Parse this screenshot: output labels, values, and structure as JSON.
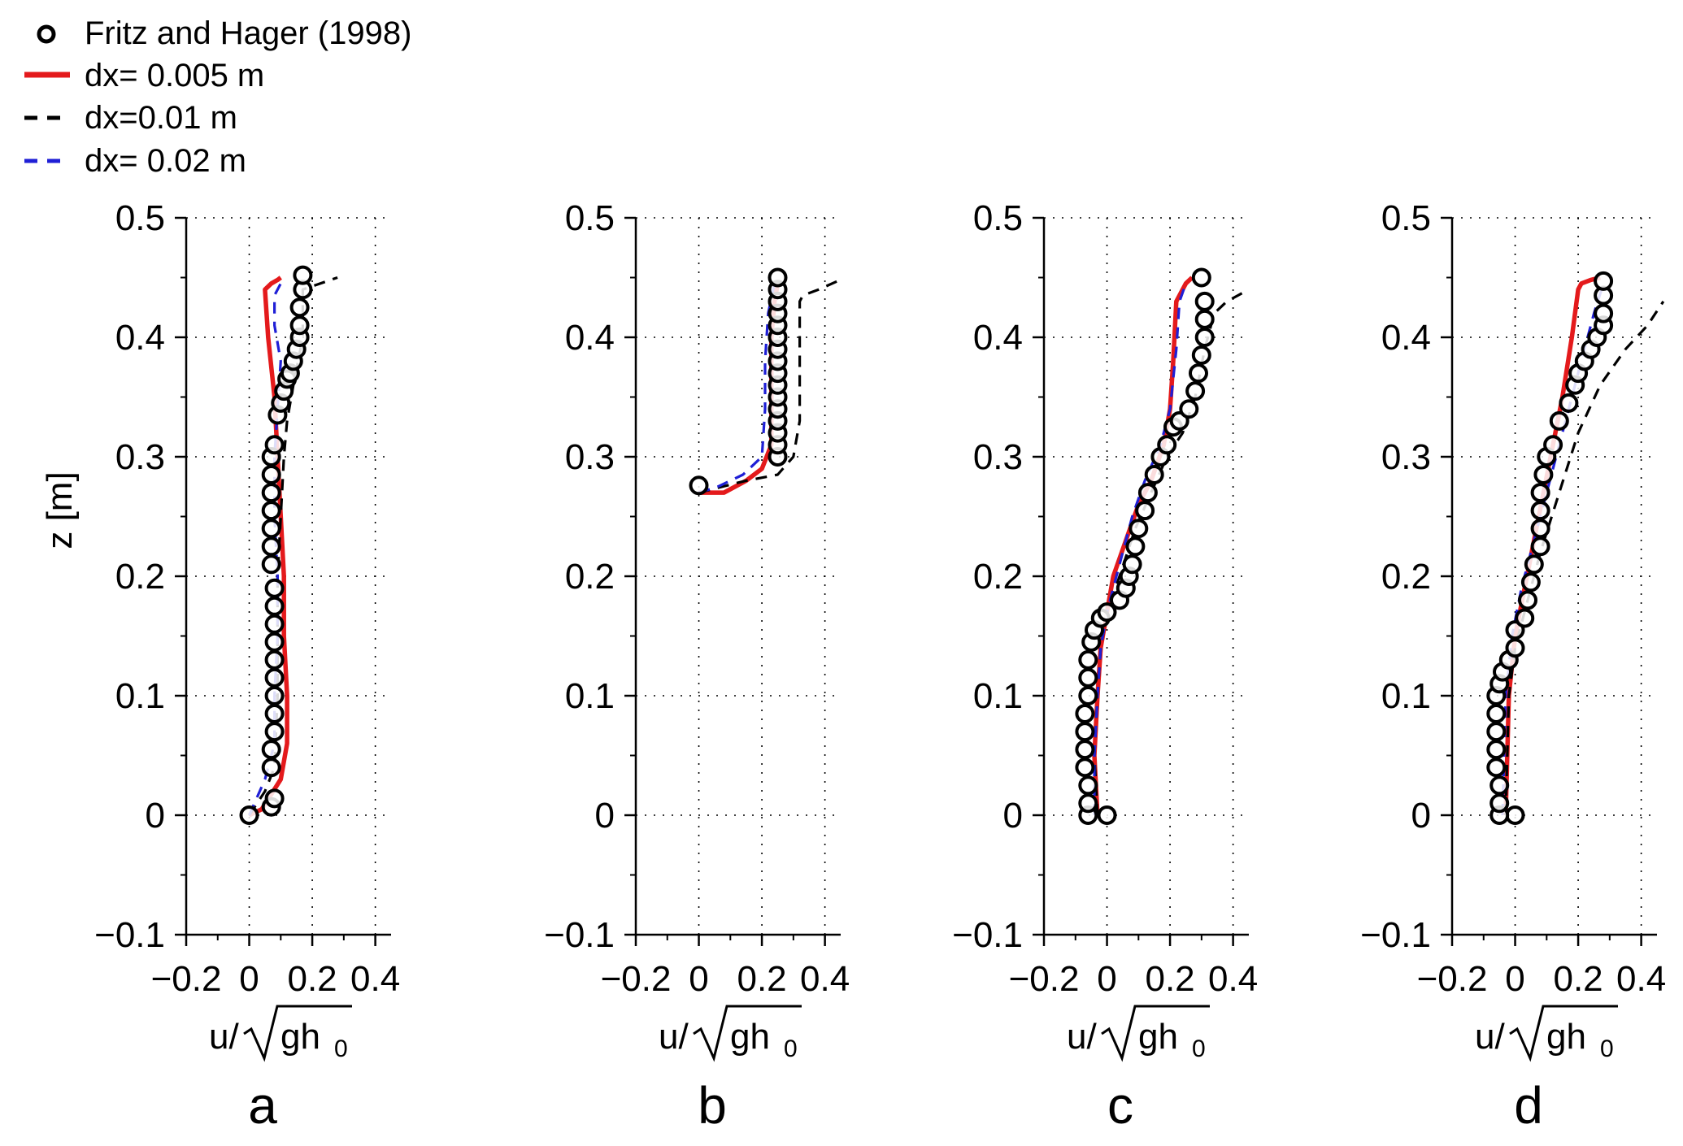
{
  "legend": {
    "entries": [
      {
        "key": "observed",
        "label": "Fritz and Hager (1998)",
        "style": "marker",
        "color": "#000000"
      },
      {
        "key": "dx005",
        "label": "dx= 0.005 m",
        "style": "solid",
        "color": "#e41a1c"
      },
      {
        "key": "dx01",
        "label": "dx=0.01 m",
        "style": "dashed",
        "color": "#000000"
      },
      {
        "key": "dx02",
        "label": "dx= 0.02 m",
        "style": "dashed",
        "color": "#1f1fd6"
      }
    ]
  },
  "axes_text": {
    "ylabel": "z [m]",
    "xlabel_u": "u/",
    "xlabel_g": "gh",
    "xlabel_sub": "0"
  },
  "chart_data": [
    {
      "type": "line",
      "panel": "a",
      "xlim": [
        -0.2,
        0.45
      ],
      "ylim": [
        -0.1,
        0.5
      ],
      "xticks": [
        "−0.2",
        "0",
        "0.2",
        "0.4"
      ],
      "xtick_values": [
        -0.2,
        0,
        0.2,
        0.4
      ],
      "yticks": [
        "−0.1",
        "0",
        "0.1",
        "0.2",
        "0.3",
        "0.4",
        "0.5"
      ],
      "ytick_values": [
        -0.1,
        0,
        0.1,
        0.2,
        0.3,
        0.4,
        0.5
      ],
      "grid": true,
      "observed": [
        [
          0.0,
          0.0
        ],
        [
          0.07,
          0.007
        ],
        [
          0.08,
          0.014
        ],
        [
          0.07,
          0.04
        ],
        [
          0.07,
          0.055
        ],
        [
          0.08,
          0.07
        ],
        [
          0.08,
          0.085
        ],
        [
          0.08,
          0.1
        ],
        [
          0.08,
          0.115
        ],
        [
          0.08,
          0.13
        ],
        [
          0.08,
          0.145
        ],
        [
          0.08,
          0.16
        ],
        [
          0.08,
          0.175
        ],
        [
          0.08,
          0.19
        ],
        [
          0.07,
          0.21
        ],
        [
          0.07,
          0.225
        ],
        [
          0.07,
          0.24
        ],
        [
          0.07,
          0.255
        ],
        [
          0.07,
          0.27
        ],
        [
          0.07,
          0.285
        ],
        [
          0.07,
          0.3
        ],
        [
          0.08,
          0.31
        ],
        [
          0.09,
          0.335
        ],
        [
          0.1,
          0.345
        ],
        [
          0.11,
          0.355
        ],
        [
          0.12,
          0.365
        ],
        [
          0.13,
          0.37
        ],
        [
          0.14,
          0.38
        ],
        [
          0.15,
          0.39
        ],
        [
          0.16,
          0.4
        ],
        [
          0.16,
          0.41
        ],
        [
          0.16,
          0.425
        ],
        [
          0.17,
          0.44
        ],
        [
          0.17,
          0.452
        ]
      ],
      "series": [
        {
          "key": "dx005",
          "x": [
            0.0,
            0.04,
            0.1,
            0.12,
            0.12,
            0.11,
            0.11,
            0.1,
            0.09,
            0.08,
            0.06,
            0.05,
            0.07,
            0.09,
            0.1
          ],
          "z": [
            0.0,
            0.005,
            0.03,
            0.06,
            0.1,
            0.15,
            0.2,
            0.25,
            0.3,
            0.35,
            0.4,
            0.44,
            0.445,
            0.448,
            0.45
          ]
        },
        {
          "key": "dx01",
          "x": [
            0.0,
            0.05,
            0.08,
            0.09,
            0.09,
            0.09,
            0.1,
            0.11,
            0.12,
            0.14,
            0.17,
            0.17,
            0.28
          ],
          "z": [
            0.0,
            0.02,
            0.04,
            0.1,
            0.15,
            0.2,
            0.25,
            0.3,
            0.33,
            0.36,
            0.4,
            0.44,
            0.45
          ]
        },
        {
          "key": "dx02",
          "x": [
            0.0,
            0.05,
            0.08,
            0.08,
            0.09,
            0.09,
            0.08,
            0.08,
            0.09,
            0.1,
            0.08,
            0.08,
            0.11
          ],
          "z": [
            0.0,
            0.03,
            0.06,
            0.1,
            0.15,
            0.2,
            0.25,
            0.3,
            0.34,
            0.38,
            0.41,
            0.435,
            0.45
          ]
        }
      ]
    },
    {
      "type": "line",
      "panel": "b",
      "xlim": [
        -0.2,
        0.45
      ],
      "ylim": [
        -0.1,
        0.5
      ],
      "xticks": [
        "−0.2",
        "0",
        "0.2",
        "0.4"
      ],
      "xtick_values": [
        -0.2,
        0,
        0.2,
        0.4
      ],
      "yticks": [
        "−0.1",
        "0",
        "0.1",
        "0.2",
        "0.3",
        "0.4",
        "0.5"
      ],
      "ytick_values": [
        -0.1,
        0,
        0.1,
        0.2,
        0.3,
        0.4,
        0.5
      ],
      "grid": true,
      "observed": [
        [
          0.0,
          0.276
        ],
        [
          0.25,
          0.3
        ],
        [
          0.25,
          0.31
        ],
        [
          0.25,
          0.32
        ],
        [
          0.25,
          0.33
        ],
        [
          0.25,
          0.34
        ],
        [
          0.25,
          0.35
        ],
        [
          0.25,
          0.36
        ],
        [
          0.25,
          0.37
        ],
        [
          0.25,
          0.38
        ],
        [
          0.25,
          0.39
        ],
        [
          0.25,
          0.4
        ],
        [
          0.25,
          0.41
        ],
        [
          0.25,
          0.42
        ],
        [
          0.25,
          0.43
        ],
        [
          0.25,
          0.44
        ],
        [
          0.25,
          0.45
        ]
      ],
      "series": [
        {
          "key": "dx005",
          "x": [
            0.0,
            0.08,
            0.15,
            0.2,
            0.23,
            0.23,
            0.23,
            0.24,
            0.25
          ],
          "z": [
            0.27,
            0.27,
            0.28,
            0.29,
            0.31,
            0.35,
            0.4,
            0.43,
            0.445
          ]
        },
        {
          "key": "dx01",
          "x": [
            0.0,
            0.15,
            0.25,
            0.3,
            0.32,
            0.32,
            0.32,
            0.33,
            0.38,
            0.44
          ],
          "z": [
            0.27,
            0.28,
            0.285,
            0.3,
            0.33,
            0.38,
            0.43,
            0.435,
            0.44,
            0.447
          ]
        },
        {
          "key": "dx02",
          "x": [
            0.0,
            0.06,
            0.14,
            0.2,
            0.21,
            0.21,
            0.22,
            0.24
          ],
          "z": [
            0.27,
            0.275,
            0.285,
            0.3,
            0.34,
            0.38,
            0.42,
            0.445
          ]
        }
      ]
    },
    {
      "type": "line",
      "panel": "c",
      "xlim": [
        -0.2,
        0.45
      ],
      "ylim": [
        -0.1,
        0.5
      ],
      "xticks": [
        "−0.2",
        "0",
        "0.2",
        "0.4"
      ],
      "xtick_values": [
        -0.2,
        0,
        0.2,
        0.4
      ],
      "yticks": [
        "−0.1",
        "0",
        "0.1",
        "0.2",
        "0.3",
        "0.4",
        "0.5"
      ],
      "ytick_values": [
        -0.1,
        0,
        0.1,
        0.2,
        0.3,
        0.4,
        0.5
      ],
      "grid": true,
      "observed": [
        [
          0.0,
          0.0
        ],
        [
          -0.06,
          0.0
        ],
        [
          -0.06,
          0.01
        ],
        [
          -0.06,
          0.025
        ],
        [
          -0.07,
          0.04
        ],
        [
          -0.07,
          0.055
        ],
        [
          -0.07,
          0.07
        ],
        [
          -0.07,
          0.085
        ],
        [
          -0.06,
          0.1
        ],
        [
          -0.06,
          0.115
        ],
        [
          -0.06,
          0.13
        ],
        [
          -0.05,
          0.145
        ],
        [
          -0.04,
          0.155
        ],
        [
          -0.02,
          0.165
        ],
        [
          0.0,
          0.17
        ],
        [
          0.04,
          0.18
        ],
        [
          0.06,
          0.19
        ],
        [
          0.07,
          0.2
        ],
        [
          0.08,
          0.21
        ],
        [
          0.09,
          0.225
        ],
        [
          0.1,
          0.24
        ],
        [
          0.12,
          0.255
        ],
        [
          0.13,
          0.27
        ],
        [
          0.15,
          0.285
        ],
        [
          0.17,
          0.3
        ],
        [
          0.19,
          0.31
        ],
        [
          0.21,
          0.325
        ],
        [
          0.23,
          0.33
        ],
        [
          0.26,
          0.34
        ],
        [
          0.28,
          0.355
        ],
        [
          0.29,
          0.37
        ],
        [
          0.3,
          0.385
        ],
        [
          0.31,
          0.4
        ],
        [
          0.31,
          0.415
        ],
        [
          0.31,
          0.43
        ],
        [
          0.3,
          0.45
        ]
      ],
      "series": [
        {
          "key": "dx005",
          "x": [
            -0.03,
            -0.04,
            -0.03,
            -0.02,
            0.0,
            0.02,
            0.06,
            0.1,
            0.14,
            0.18,
            0.2,
            0.21,
            0.22,
            0.25,
            0.27
          ],
          "z": [
            0.0,
            0.05,
            0.1,
            0.14,
            0.17,
            0.2,
            0.23,
            0.26,
            0.28,
            0.31,
            0.34,
            0.38,
            0.43,
            0.445,
            0.45
          ]
        },
        {
          "key": "dx01",
          "x": [
            -0.03,
            -0.04,
            -0.03,
            -0.02,
            0.0,
            0.04,
            0.09,
            0.14,
            0.19,
            0.24,
            0.28,
            0.31,
            0.34,
            0.38,
            0.45
          ],
          "z": [
            0.0,
            0.05,
            0.1,
            0.14,
            0.17,
            0.2,
            0.24,
            0.27,
            0.3,
            0.32,
            0.35,
            0.39,
            0.42,
            0.43,
            0.44
          ]
        },
        {
          "key": "dx02",
          "x": [
            -0.04,
            -0.04,
            -0.03,
            -0.02,
            0.0,
            0.04,
            0.08,
            0.12,
            0.17,
            0.2,
            0.22,
            0.23,
            0.25
          ],
          "z": [
            0.0,
            0.05,
            0.1,
            0.14,
            0.17,
            0.21,
            0.25,
            0.28,
            0.31,
            0.34,
            0.39,
            0.43,
            0.445
          ]
        }
      ]
    },
    {
      "type": "line",
      "panel": "d",
      "xlim": [
        -0.2,
        0.45
      ],
      "ylim": [
        -0.1,
        0.5
      ],
      "xticks": [
        "−0.2",
        "0",
        "0.2",
        "0.4"
      ],
      "xtick_values": [
        -0.2,
        0,
        0.2,
        0.4
      ],
      "yticks": [
        "−0.1",
        "0",
        "0.1",
        "0.2",
        "0.3",
        "0.4",
        "0.5"
      ],
      "ytick_values": [
        -0.1,
        0,
        0.1,
        0.2,
        0.3,
        0.4,
        0.5
      ],
      "grid": true,
      "observed": [
        [
          0.0,
          0.0
        ],
        [
          -0.05,
          0.0
        ],
        [
          -0.05,
          0.01
        ],
        [
          -0.05,
          0.025
        ],
        [
          -0.06,
          0.04
        ],
        [
          -0.06,
          0.055
        ],
        [
          -0.06,
          0.07
        ],
        [
          -0.06,
          0.085
        ],
        [
          -0.06,
          0.1
        ],
        [
          -0.05,
          0.11
        ],
        [
          -0.04,
          0.12
        ],
        [
          -0.02,
          0.13
        ],
        [
          0.0,
          0.14
        ],
        [
          0.0,
          0.155
        ],
        [
          0.03,
          0.165
        ],
        [
          0.04,
          0.18
        ],
        [
          0.05,
          0.195
        ],
        [
          0.06,
          0.21
        ],
        [
          0.08,
          0.225
        ],
        [
          0.08,
          0.24
        ],
        [
          0.08,
          0.255
        ],
        [
          0.08,
          0.27
        ],
        [
          0.09,
          0.285
        ],
        [
          0.1,
          0.3
        ],
        [
          0.12,
          0.31
        ],
        [
          0.14,
          0.33
        ],
        [
          0.17,
          0.345
        ],
        [
          0.19,
          0.36
        ],
        [
          0.2,
          0.37
        ],
        [
          0.22,
          0.38
        ],
        [
          0.24,
          0.39
        ],
        [
          0.26,
          0.4
        ],
        [
          0.28,
          0.41
        ],
        [
          0.28,
          0.42
        ],
        [
          0.28,
          0.435
        ],
        [
          0.28,
          0.447
        ]
      ],
      "series": [
        {
          "key": "dx005",
          "x": [
            -0.03,
            -0.02,
            0.0,
            0.03,
            0.06,
            0.09,
            0.12,
            0.15,
            0.18,
            0.2,
            0.21,
            0.24,
            0.27
          ],
          "z": [
            0.0,
            0.1,
            0.15,
            0.19,
            0.23,
            0.27,
            0.31,
            0.35,
            0.4,
            0.44,
            0.445,
            0.448,
            0.45
          ]
        },
        {
          "key": "dx01",
          "x": [
            -0.03,
            -0.02,
            0.0,
            0.04,
            0.08,
            0.14,
            0.2,
            0.27,
            0.35,
            0.42,
            0.47
          ],
          "z": [
            0.0,
            0.1,
            0.14,
            0.18,
            0.22,
            0.27,
            0.32,
            0.36,
            0.39,
            0.41,
            0.43
          ]
        },
        {
          "key": "dx02",
          "x": [
            -0.04,
            -0.03,
            -0.01,
            0.02,
            0.06,
            0.1,
            0.14,
            0.18,
            0.22,
            0.25,
            0.28
          ],
          "z": [
            0.0,
            0.1,
            0.15,
            0.19,
            0.23,
            0.27,
            0.31,
            0.35,
            0.39,
            0.42,
            0.445
          ]
        }
      ]
    }
  ]
}
